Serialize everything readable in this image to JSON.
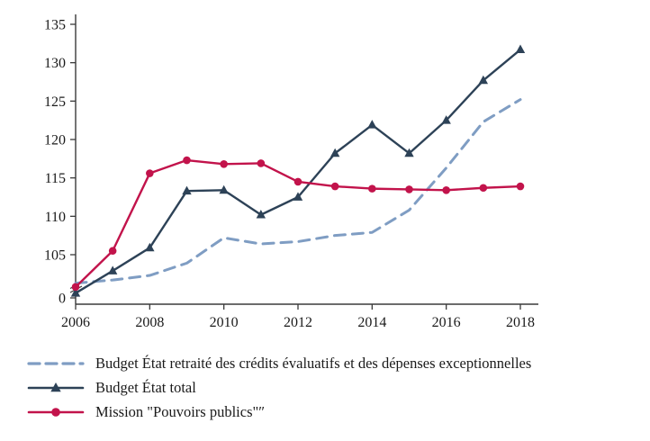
{
  "chart_data": {
    "type": "line",
    "title": "",
    "xlabel": "",
    "ylabel": "",
    "grid": false,
    "legend_position": "bottom-left",
    "x": [
      2006,
      2007,
      2008,
      2009,
      2010,
      2011,
      2012,
      2013,
      2014,
      2015,
      2016,
      2017,
      2018
    ],
    "x_tick_labels": [
      "2006",
      "2008",
      "2010",
      "2012",
      "2014",
      "2016",
      "2018"
    ],
    "y_ticks": [
      105,
      110,
      115,
      120,
      125,
      130,
      135
    ],
    "y_axis_break_label": "0",
    "ylim": [
      100,
      135
    ],
    "series": [
      {
        "name": "Budget État retraité des crédits évaluatifs et des dépenses exceptionnelles",
        "color": "#7f9dc3",
        "style": "dashed",
        "marker": "none",
        "values": [
          101.3,
          101.7,
          102.3,
          103.9,
          107.2,
          106.4,
          106.7,
          107.5,
          107.9,
          110.8,
          116.3,
          122.3,
          125.2
        ]
      },
      {
        "name": "Budget État total",
        "color": "#2d4257",
        "style": "solid",
        "marker": "triangle",
        "values": [
          100.0,
          102.9,
          105.9,
          113.3,
          113.4,
          110.2,
          112.5,
          118.2,
          121.9,
          118.2,
          122.5,
          127.7,
          131.7
        ]
      },
      {
        "name": "Mission \"Pouvoirs publics\"″",
        "color": "#c2134b",
        "style": "solid",
        "marker": "circle",
        "values": [
          100.8,
          105.5,
          115.6,
          117.3,
          116.8,
          116.9,
          114.5,
          113.9,
          113.6,
          113.5,
          113.4,
          113.7,
          113.9
        ]
      }
    ]
  }
}
